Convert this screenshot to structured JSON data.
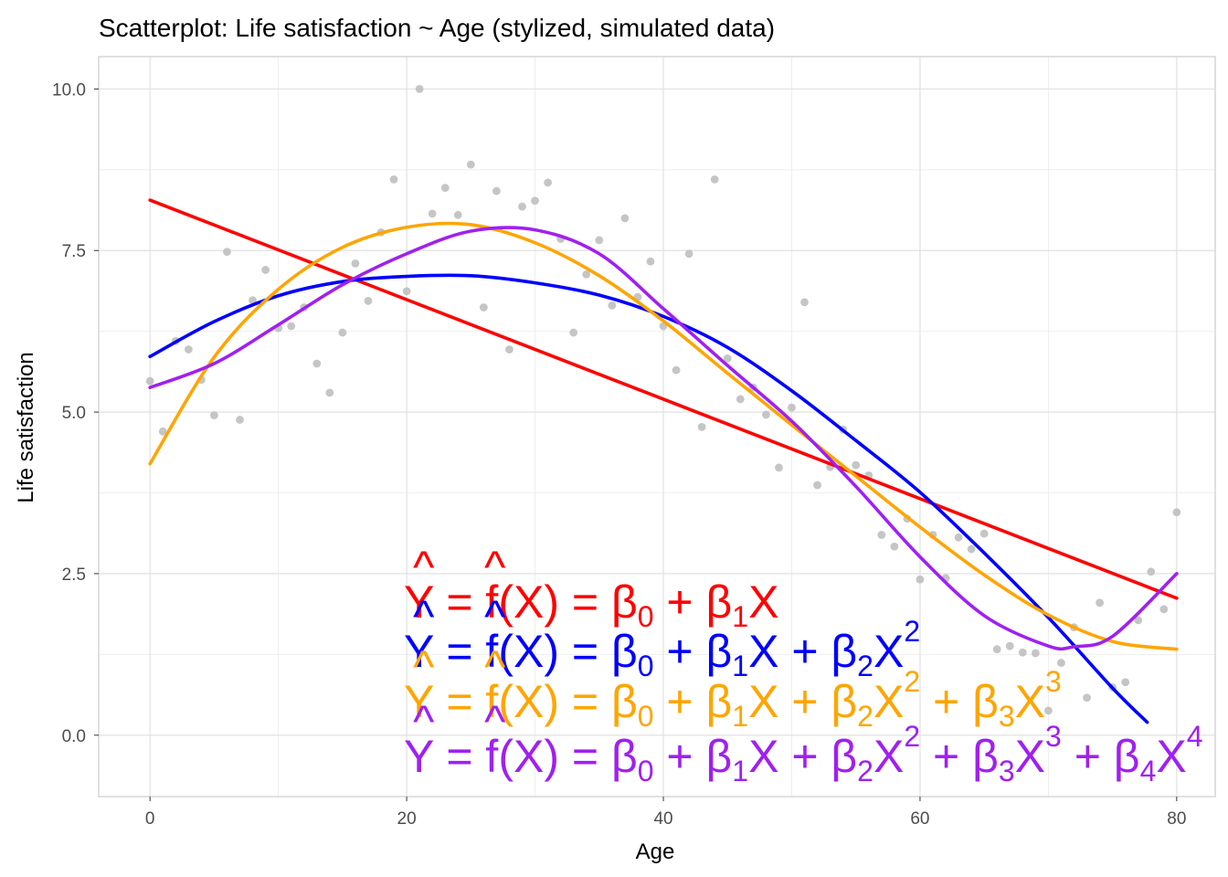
{
  "chart_data": {
    "type": "scatter",
    "title": "Scatterplot: Life satisfaction ~ Age (stylized, simulated data)",
    "xlabel": "Age",
    "ylabel": "Life satisfaction",
    "xlim": [
      -4,
      83
    ],
    "ylim": [
      -0.95,
      10.5
    ],
    "xticks": [
      0,
      20,
      40,
      60,
      80
    ],
    "xtick_labels": [
      "0",
      "20",
      "40",
      "60",
      "80"
    ],
    "yticks": [
      0,
      2.5,
      5,
      7.5,
      10
    ],
    "ytick_labels": [
      "0.0",
      "2.5",
      "5.0",
      "7.5",
      "10.0"
    ],
    "grid": true,
    "points": {
      "color": "#bfbfbf",
      "x": [
        0,
        1,
        2,
        3,
        4,
        5,
        6,
        7,
        8,
        9,
        10,
        11,
        12,
        13,
        14,
        15,
        16,
        17,
        18,
        19,
        20,
        21,
        22,
        23,
        24,
        25,
        26,
        27,
        28,
        29,
        30,
        31,
        32,
        33,
        34,
        35,
        36,
        37,
        38,
        39,
        40,
        41,
        42,
        43,
        44,
        45,
        46,
        47,
        48,
        49,
        50,
        51,
        52,
        53,
        54,
        55,
        56,
        57,
        58,
        59,
        60,
        61,
        62,
        63,
        64,
        65,
        66,
        67,
        68,
        69,
        70,
        71,
        72,
        73,
        74,
        75,
        76,
        77,
        78,
        79,
        80
      ],
      "y": [
        5.48,
        4.7,
        6.1,
        5.97,
        5.5,
        4.95,
        7.48,
        4.88,
        6.73,
        7.2,
        6.3,
        6.33,
        6.62,
        5.75,
        5.3,
        6.23,
        7.3,
        6.72,
        7.78,
        8.6,
        6.87,
        10.0,
        8.07,
        8.47,
        8.05,
        8.83,
        6.62,
        8.42,
        5.97,
        8.18,
        8.27,
        8.55,
        7.68,
        6.23,
        7.13,
        7.66,
        6.65,
        8.0,
        6.78,
        7.33,
        6.33,
        5.65,
        7.45,
        4.77,
        8.6,
        5.83,
        5.2,
        5.38,
        4.96,
        4.14,
        5.07,
        6.7,
        3.87,
        4.15,
        4.73,
        4.18,
        4.02,
        3.1,
        2.92,
        3.35,
        2.41,
        3.1,
        2.43,
        3.06,
        2.88,
        3.12,
        1.33,
        1.38,
        1.28,
        1.27,
        0.38,
        1.12,
        1.67,
        0.58,
        2.05,
        0.74,
        0.82,
        1.78,
        2.53,
        1.95,
        3.45
      ]
    },
    "series": [
      {
        "color": "#ff0000",
        "x": [
          0,
          80
        ],
        "y": [
          8.28,
          2.12
        ]
      },
      {
        "color": "#0000ff",
        "x": [
          0,
          5,
          10,
          15,
          20,
          25,
          30,
          35,
          40,
          45,
          50,
          55,
          60,
          65,
          70,
          75,
          77.7
        ],
        "y": [
          5.86,
          6.4,
          6.8,
          7.02,
          7.1,
          7.11,
          7.0,
          6.81,
          6.48,
          6.0,
          5.33,
          4.56,
          3.76,
          2.82,
          1.82,
          0.73,
          0.2
        ]
      },
      {
        "color": "#ffa500",
        "x": [
          0,
          5,
          10,
          15,
          20,
          25,
          30,
          35,
          40,
          45,
          50,
          55,
          60,
          65,
          70,
          75,
          80
        ],
        "y": [
          4.2,
          5.85,
          6.9,
          7.55,
          7.86,
          7.9,
          7.62,
          7.11,
          6.41,
          5.6,
          4.8,
          4.01,
          3.22,
          2.48,
          1.86,
          1.45,
          1.33
        ]
      },
      {
        "color": "#a020f0",
        "x": [
          0,
          5,
          10,
          15,
          20,
          25,
          30,
          35,
          40,
          45,
          50,
          55,
          60,
          65,
          70,
          72,
          75,
          80
        ],
        "y": [
          5.38,
          5.75,
          6.35,
          6.97,
          7.45,
          7.8,
          7.82,
          7.45,
          6.6,
          5.72,
          4.86,
          3.85,
          2.76,
          1.85,
          1.38,
          1.37,
          1.53,
          2.5
        ]
      }
    ],
    "annotations": [
      {
        "color": "#ff0000",
        "hat1": "^",
        "hat2": "^",
        "p1": "Y = f",
        "p2": "(X) = β",
        "s0": "0",
        "p3": " + β",
        "s1": "1",
        "p4": "X"
      },
      {
        "color": "#0000ff",
        "hat1": "^",
        "hat2": "^",
        "p1": "Y = f",
        "p2": "(X) = β",
        "s0": "0",
        "p3": " + β",
        "s1": "1",
        "p4": "X + β",
        "s2": "2",
        "p5": "X",
        "e2": "2"
      },
      {
        "color": "#ffa500",
        "hat1": "^",
        "hat2": "^",
        "p1": "Y = f",
        "p2": "(X) = β",
        "s0": "0",
        "p3": " + β",
        "s1": "1",
        "p4": "X + β",
        "s2": "2",
        "p5": "X",
        "e2": "2",
        "p6": " + β",
        "s3": "3",
        "p7": "X",
        "e3": "3"
      },
      {
        "color": "#a020f0",
        "hat1": "^",
        "hat2": "^",
        "p1": "Y = f",
        "p2": "(X) = β",
        "s0": "0",
        "p3": " + β",
        "s1": "1",
        "p4": "X + β",
        "s2": "2",
        "p5": "X",
        "e2": "2",
        "p6": " + β",
        "s3": "3",
        "p7": "X",
        "e3": "3",
        "p8": " + β",
        "s4": "4",
        "p9": "X",
        "e4": "4"
      }
    ]
  }
}
